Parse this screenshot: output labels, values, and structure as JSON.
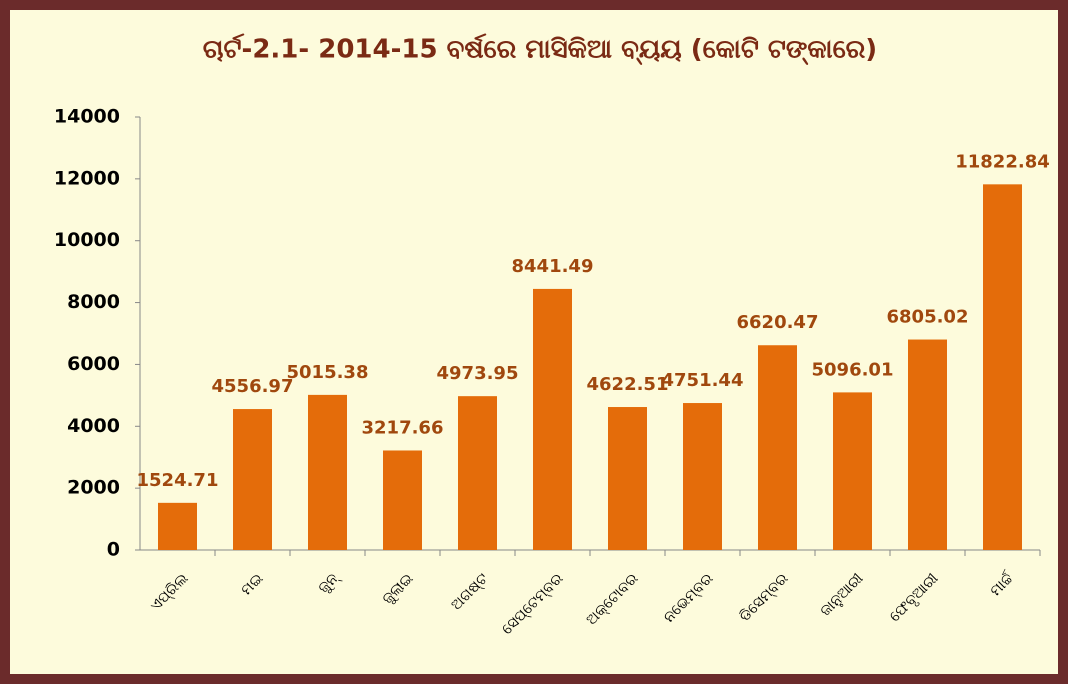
{
  "chart_data": {
    "type": "bar",
    "title": "ଚାର୍ଟ-2.1- 2014-15 ବର୍ଷରେ ମାସିକିଆ ବ୍ୟୟ (କୋଟି ଟଙ୍କାରେ)",
    "categories": [
      "ଏପ୍ରିଲ",
      "ମଇ",
      "ଜୁନ୍",
      "ଜୁଲାଇ",
      "ଅଗଷ୍ଟ",
      "ସେପ୍ଟେମ୍ବର",
      "ଅକ୍ଟୋବର",
      "ନଭେମ୍ବର",
      "ଡିସେମ୍ବର",
      "ଜାନୁଆରୀ",
      "ଫେବୃଆରୀ",
      "ମାର୍ଚ୍ଚ"
    ],
    "values": [
      1524.71,
      4556.97,
      5015.38,
      3217.66,
      4973.95,
      8441.49,
      4622.51,
      4751.44,
      6620.47,
      5096.01,
      6805.02,
      11822.84
    ],
    "color": "#e46c0a",
    "ylim": [
      0,
      14000
    ],
    "yticks": [
      0,
      2000,
      4000,
      6000,
      8000,
      10000,
      12000,
      14000
    ],
    "grid": false
  }
}
